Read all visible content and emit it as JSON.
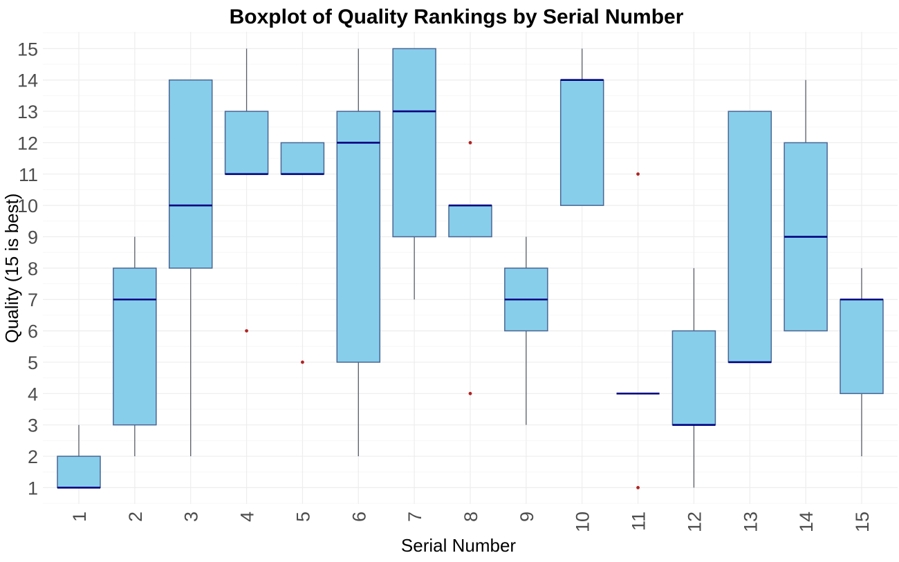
{
  "chart_data": {
    "type": "boxplot",
    "title": "Boxplot of Quality Rankings by Serial Number",
    "xlabel": "Serial Number",
    "ylabel": "Quality (15 is best)",
    "ylim": [
      1,
      15
    ],
    "yticks": [
      1,
      2,
      3,
      4,
      5,
      6,
      7,
      8,
      9,
      10,
      11,
      12,
      13,
      14,
      15
    ],
    "categories": [
      "1",
      "2",
      "3",
      "4",
      "5",
      "6",
      "7",
      "8",
      "9",
      "10",
      "11",
      "12",
      "13",
      "14",
      "15"
    ],
    "grid": "faint major gridlines horizontal at each quality value and vertical at each serial, white background, no axis lines or tick marks",
    "legend": "none",
    "series": [
      {
        "serial": "1",
        "whisker_low": 1,
        "q1": 1,
        "median": 1,
        "q3": 2,
        "whisker_high": 3,
        "outliers": []
      },
      {
        "serial": "2",
        "whisker_low": 2,
        "q1": 3,
        "median": 7,
        "q3": 8,
        "whisker_high": 9,
        "outliers": []
      },
      {
        "serial": "3",
        "whisker_low": 2,
        "q1": 8,
        "median": 10,
        "q3": 14,
        "whisker_high": 14,
        "outliers": []
      },
      {
        "serial": "4",
        "whisker_low": 11,
        "q1": 11,
        "median": 11,
        "q3": 13,
        "whisker_high": 15,
        "outliers": [
          6
        ]
      },
      {
        "serial": "5",
        "whisker_low": 11,
        "q1": 11,
        "median": 11,
        "q3": 12,
        "whisker_high": 12,
        "outliers": [
          5
        ]
      },
      {
        "serial": "6",
        "whisker_low": 2,
        "q1": 5,
        "median": 12,
        "q3": 13,
        "whisker_high": 15,
        "outliers": []
      },
      {
        "serial": "7",
        "whisker_low": 7,
        "q1": 9,
        "median": 13,
        "q3": 15,
        "whisker_high": 15,
        "outliers": []
      },
      {
        "serial": "8",
        "whisker_low": 9,
        "q1": 9,
        "median": 10,
        "q3": 10,
        "whisker_high": 10,
        "outliers": [
          12,
          4
        ]
      },
      {
        "serial": "9",
        "whisker_low": 3,
        "q1": 6,
        "median": 7,
        "q3": 8,
        "whisker_high": 9,
        "outliers": []
      },
      {
        "serial": "10",
        "whisker_low": 10,
        "q1": 10,
        "median": 14,
        "q3": 14,
        "whisker_high": 15,
        "outliers": []
      },
      {
        "serial": "11",
        "whisker_low": 4,
        "q1": 4,
        "median": 4,
        "q3": 4,
        "whisker_high": 4,
        "outliers": [
          11,
          1
        ]
      },
      {
        "serial": "12",
        "whisker_low": 1,
        "q1": 3,
        "median": 3,
        "q3": 6,
        "whisker_high": 8,
        "outliers": []
      },
      {
        "serial": "13",
        "whisker_low": 5,
        "q1": 5,
        "median": 5,
        "q3": 13,
        "whisker_high": 13,
        "outliers": []
      },
      {
        "serial": "14",
        "whisker_low": 6,
        "q1": 6,
        "median": 9,
        "q3": 12,
        "whisker_high": 14,
        "outliers": []
      },
      {
        "serial": "15",
        "whisker_low": 2,
        "q1": 4,
        "median": 7,
        "q3": 7,
        "whisker_high": 8,
        "outliers": []
      }
    ],
    "colors": {
      "box_fill": "#87CEEB",
      "box_border": "#4A6593",
      "median": "#000080",
      "whisker": "#565B66",
      "outlier": "#B22222",
      "grid_major": "#EDEDED",
      "grid_minor": "#F7F7F7",
      "tick_text": "#4D4D4D",
      "title_text": "#000000"
    }
  }
}
